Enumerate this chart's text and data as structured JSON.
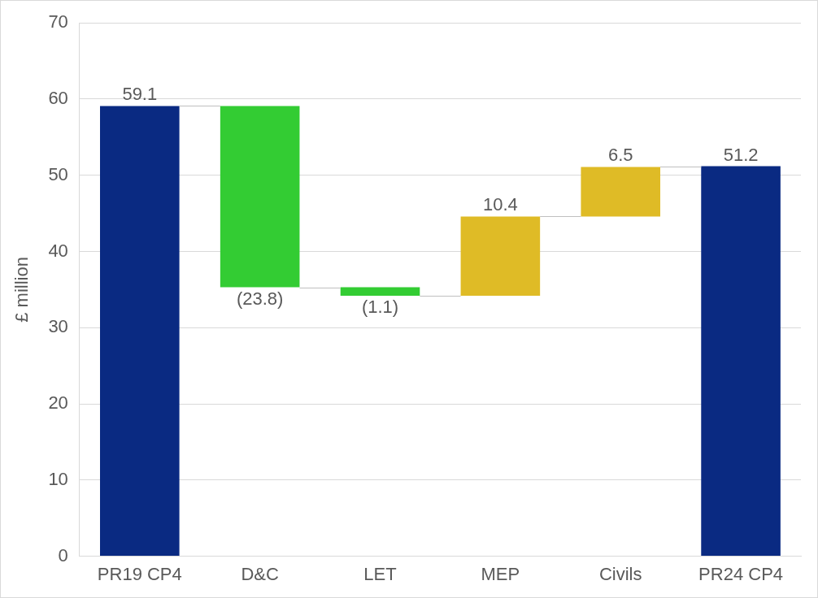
{
  "chart_data": {
    "type": "bar",
    "ylabel": "£ million",
    "categories": [
      "PR19 CP4",
      "D&C",
      "LET",
      "MEP",
      "Civils",
      "PR24 CP4"
    ],
    "values": [
      59.1,
      -23.8,
      -1.1,
      10.4,
      6.5,
      51.2
    ],
    "base": [
      0,
      59.1,
      35.3,
      34.2,
      44.6,
      0
    ],
    "colors": [
      "#0a2a82",
      "#33cc33",
      "#33cc33",
      "#dfbb26",
      "#dfbb26",
      "#0a2a82"
    ],
    "value_labels": [
      "59.1",
      "(23.8)",
      "(1.1)",
      "10.4",
      "6.5",
      "51.2"
    ],
    "ylim": [
      0,
      70
    ],
    "yticks": [
      0,
      10,
      20,
      30,
      40,
      50,
      60,
      70
    ],
    "grid": "y",
    "legend": false
  }
}
